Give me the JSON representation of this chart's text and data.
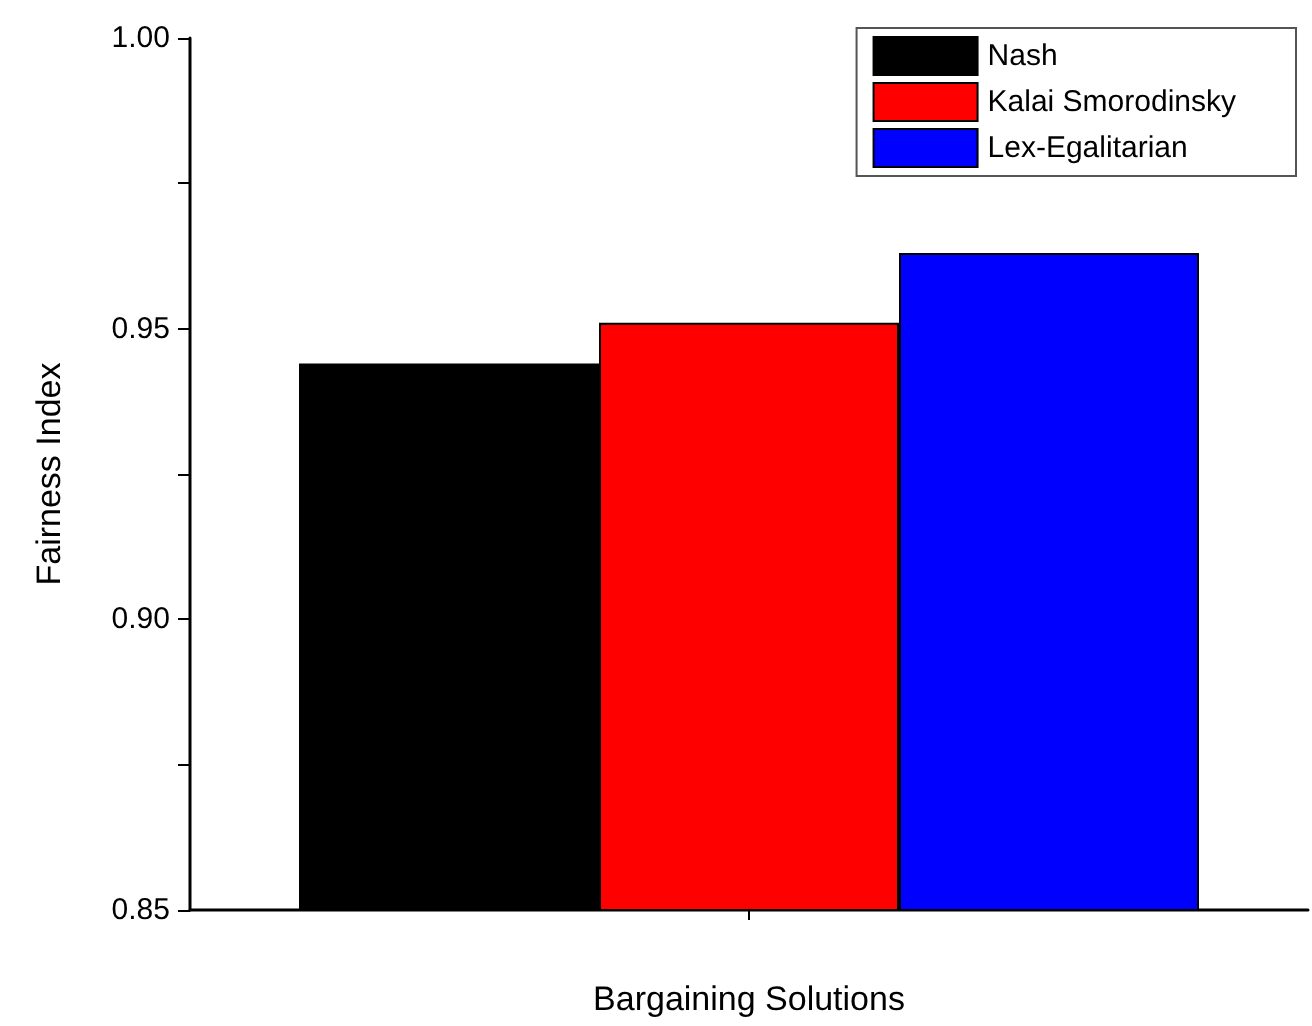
{
  "chart_data": {
    "type": "bar",
    "xlabel": "Bargaining Solutions",
    "ylabel": "Fairness Index",
    "categories": [
      null
    ],
    "series": [
      {
        "name": "Nash",
        "color": "#000000",
        "values": [
          0.944
        ]
      },
      {
        "name": "Kalai Smorodinsky",
        "color": "#ff0000",
        "values": [
          0.951
        ]
      },
      {
        "name": "Lex-Egalitarian",
        "color": "#0000ff",
        "values": [
          0.963
        ]
      }
    ],
    "ylim": [
      0.85,
      1.0
    ],
    "yticks": [
      0.85,
      {
        "value": 0.875,
        "label": null
      },
      {
        "value": 0.9,
        "label": "0.90"
      },
      {
        "value": 0.925,
        "label": null
      },
      0.95,
      {
        "value": 0.975,
        "label": null
      },
      {
        "value": 1.0,
        "label": "1.00"
      }
    ],
    "tick_labels": "y",
    "legend": "top right",
    "grid": false
  }
}
